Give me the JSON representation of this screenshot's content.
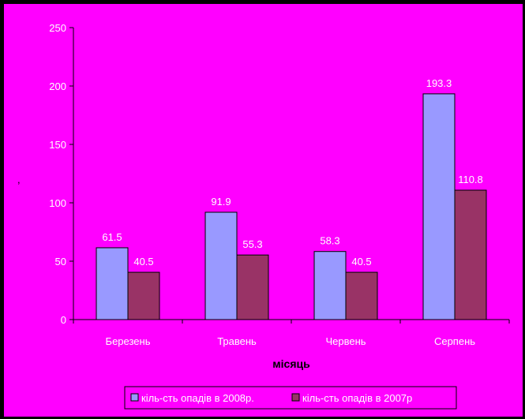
{
  "chart_data": {
    "type": "bar",
    "title": "",
    "xlabel": "місяць",
    "ylabel": ",",
    "categories": [
      "Березень",
      "Травень",
      "Червень",
      "Серпень"
    ],
    "series": [
      {
        "name": "кіль-сть опадів в 2008р.",
        "values": [
          61.5,
          91.9,
          58.3,
          193.3
        ],
        "labels": [
          "61.5",
          "91.9",
          "58.3",
          "193.3"
        ],
        "color": "#9999ff"
      },
      {
        "name": "кіль-сть опадів в 2007р",
        "values": [
          40.5,
          55.3,
          40.5,
          110.8
        ],
        "labels": [
          "40.5",
          "55.3",
          "40.5",
          "110.8"
        ],
        "color": "#993366"
      }
    ],
    "ylim": [
      0,
      250
    ],
    "yticks": [
      0,
      50,
      100,
      150,
      200,
      250
    ],
    "grid": false,
    "legend": "bottom",
    "background_color": "#ff00ff",
    "label_color": "#ffffff",
    "axis_color": "#000000"
  }
}
